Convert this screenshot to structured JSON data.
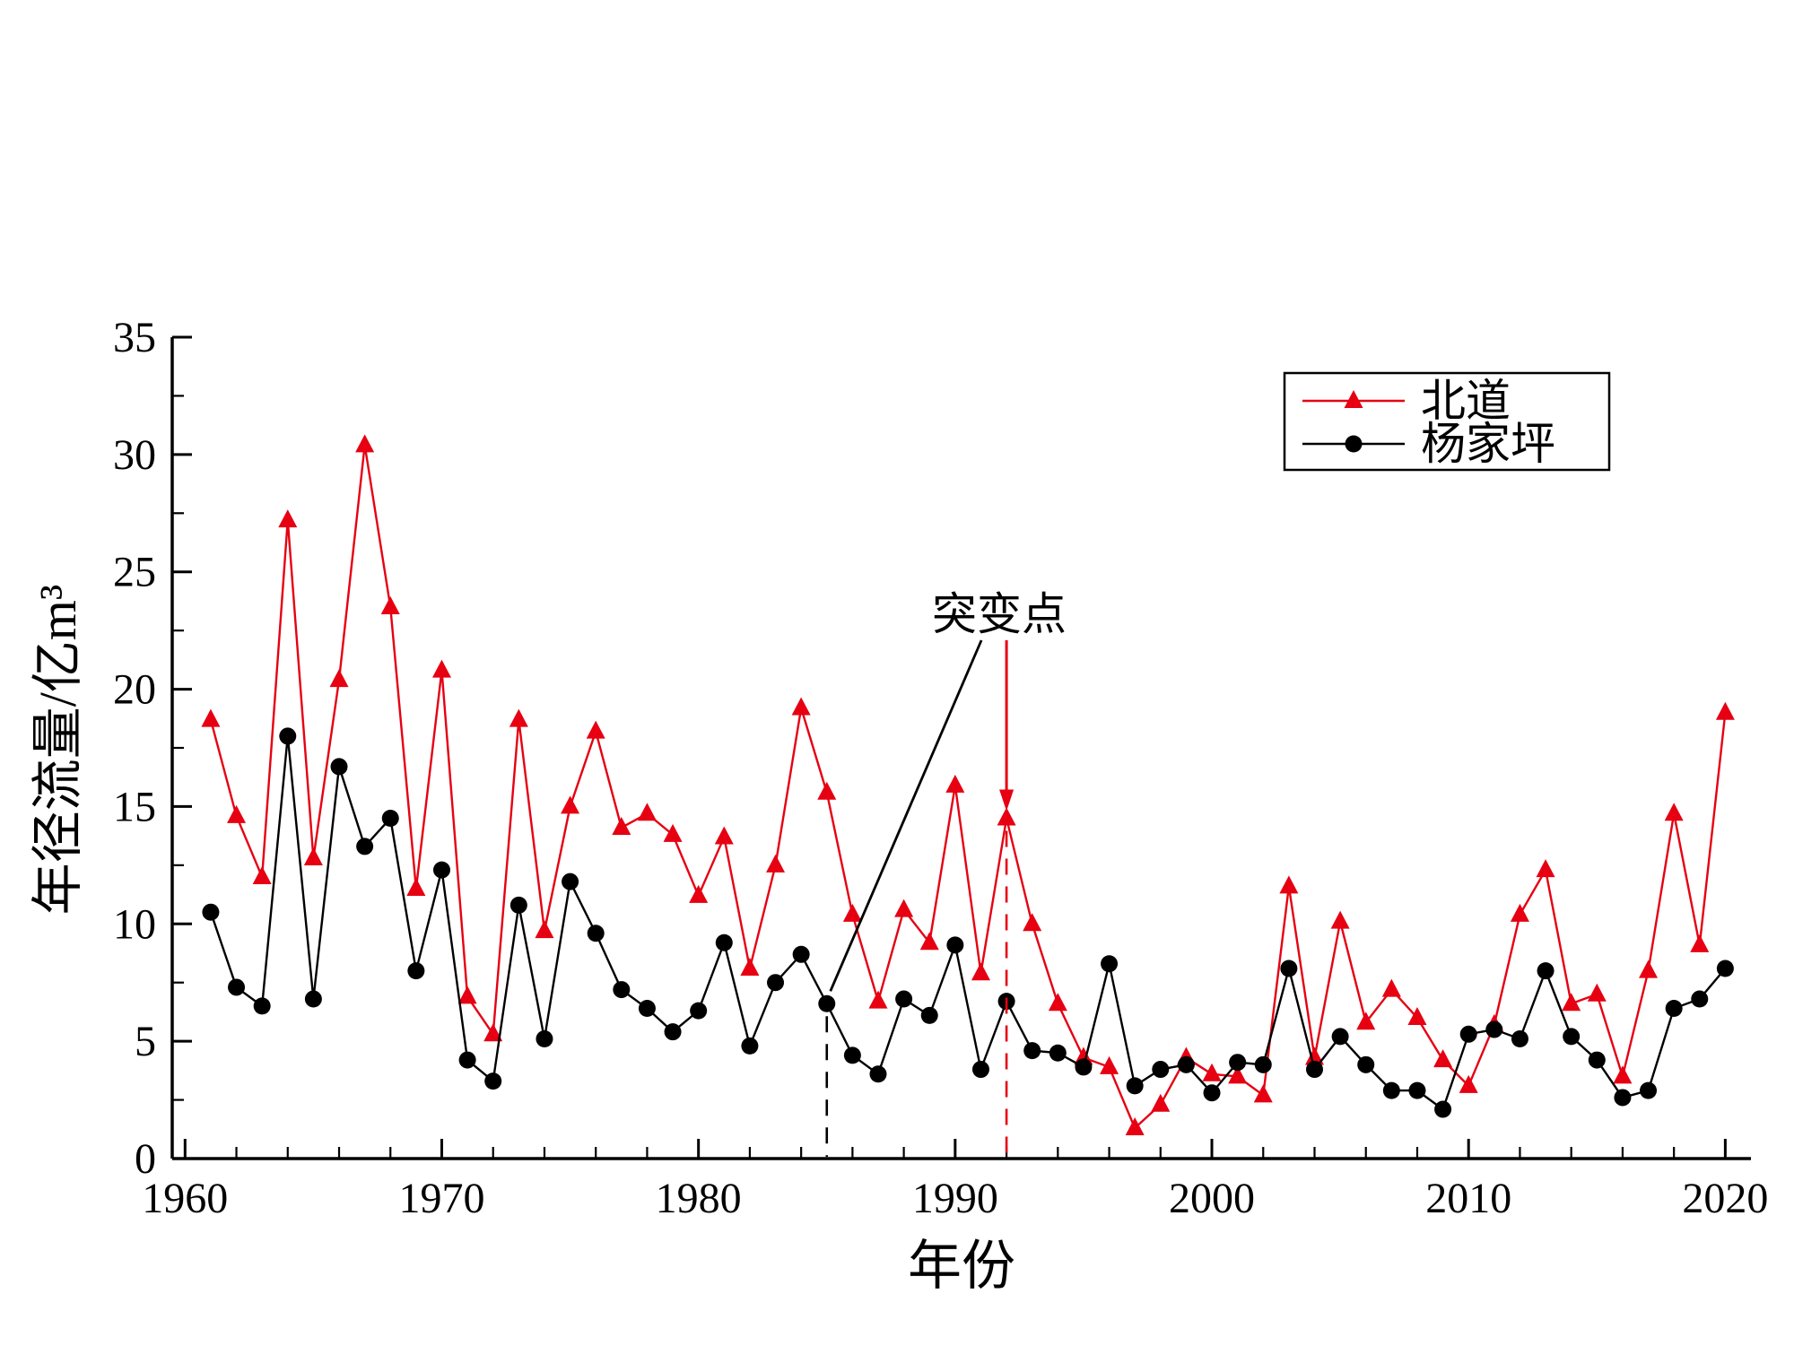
{
  "figure": {
    "background": "#ffffff"
  },
  "chart_data": {
    "type": "line",
    "title": "",
    "xlabel": "年份",
    "ylabel": "年径流量/亿m³",
    "xlim": [
      1959.5,
      2021
    ],
    "ylim": [
      0,
      35
    ],
    "xticks": [
      1960,
      1970,
      1980,
      1990,
      2000,
      2010,
      2020
    ],
    "yticks": [
      0,
      5,
      10,
      15,
      20,
      25,
      30,
      35
    ],
    "x_minor_step": 2,
    "y_minor_step": 2.5,
    "grid": false,
    "legend_position": "top-right",
    "x": [
      1961,
      1962,
      1963,
      1964,
      1965,
      1966,
      1967,
      1968,
      1969,
      1970,
      1971,
      1972,
      1973,
      1974,
      1975,
      1976,
      1977,
      1978,
      1979,
      1980,
      1981,
      1982,
      1983,
      1984,
      1985,
      1986,
      1987,
      1988,
      1989,
      1990,
      1991,
      1992,
      1993,
      1994,
      1995,
      1996,
      1997,
      1998,
      1999,
      2000,
      2001,
      2002,
      2003,
      2004,
      2005,
      2006,
      2007,
      2008,
      2009,
      2010,
      2011,
      2012,
      2013,
      2014,
      2015,
      2016,
      2017,
      2018,
      2019,
      2020
    ],
    "series": [
      {
        "id": "beidao",
        "name": "北道",
        "color": "#e60012",
        "marker": "triangle",
        "values": [
          18.7,
          14.6,
          12.0,
          27.2,
          12.8,
          20.4,
          30.4,
          23.5,
          11.5,
          20.8,
          6.9,
          5.3,
          18.7,
          9.7,
          15.0,
          18.2,
          14.1,
          14.7,
          13.8,
          11.2,
          13.7,
          8.1,
          12.5,
          19.2,
          15.6,
          10.4,
          6.7,
          10.6,
          9.2,
          15.9,
          7.9,
          14.5,
          10.0,
          6.6,
          4.3,
          3.9,
          1.3,
          2.3,
          4.3,
          3.6,
          3.5,
          2.7,
          11.6,
          4.3,
          10.1,
          5.8,
          7.2,
          6.0,
          4.2,
          3.1,
          5.7,
          10.4,
          12.3,
          6.6,
          7.0,
          3.5,
          8.0,
          14.7,
          9.1,
          19.0
        ]
      },
      {
        "id": "yangjiaping",
        "name": "杨家坪",
        "color": "#000000",
        "marker": "circle",
        "values": [
          10.5,
          7.3,
          6.5,
          18.0,
          6.8,
          16.7,
          13.3,
          14.5,
          8.0,
          12.3,
          4.2,
          3.3,
          10.8,
          5.1,
          11.8,
          9.6,
          7.2,
          6.4,
          5.4,
          6.3,
          9.2,
          4.8,
          7.5,
          8.7,
          6.6,
          4.4,
          3.6,
          6.8,
          6.1,
          9.1,
          3.8,
          6.7,
          4.6,
          4.5,
          3.9,
          8.3,
          3.1,
          3.8,
          4.0,
          2.8,
          4.1,
          4.0,
          8.1,
          3.8,
          5.2,
          4.0,
          2.9,
          2.9,
          2.1,
          5.3,
          5.5,
          5.1,
          8.0,
          5.2,
          4.2,
          2.6,
          2.9,
          6.4,
          6.8,
          8.1
        ]
      }
    ],
    "annotation": {
      "label": "突变点",
      "arrow_target": {
        "series": "北道",
        "year": 1992,
        "color": "#e60012"
      },
      "line_target": {
        "series": "杨家坪",
        "year": 1985,
        "color": "#000000"
      },
      "dashed_to_axis": true
    }
  }
}
